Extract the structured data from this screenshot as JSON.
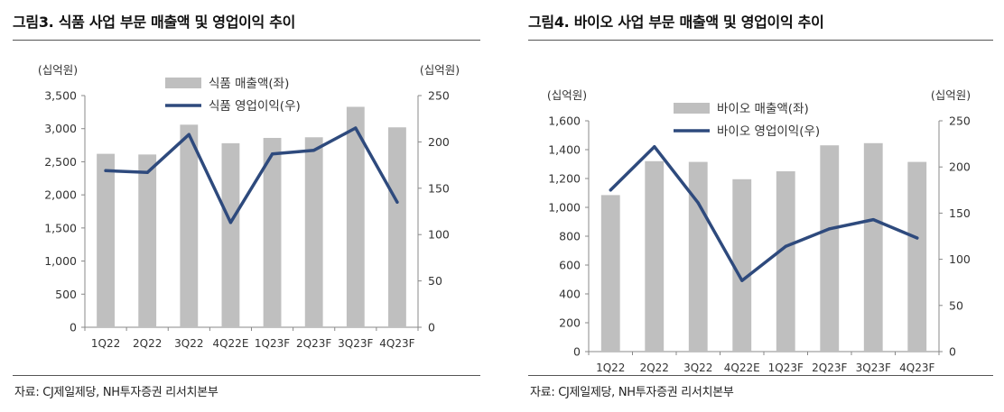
{
  "colors": {
    "bar": "#bfbfbf",
    "line": "#2e4a7d",
    "axis": "#888888",
    "rule": "#555555"
  },
  "panels": [
    {
      "title": "그림3. 식품 사업 부문 매출액 및 영업이익 추이",
      "source": "자료: CJ제일제당, NH투자증권 리서치본부"
    },
    {
      "title": "그림4. 바이오 사업 부문 매출액 및 영업이익 추이",
      "source": "자료: CJ제일제당, NH투자증권 리서치본부"
    }
  ],
  "chart_data": [
    {
      "type": "bar",
      "title": "그림3. 식품 사업 부문 매출액 및 영업이익 추이",
      "categories": [
        "1Q22",
        "2Q22",
        "3Q22",
        "4Q22E",
        "1Q23F",
        "2Q23F",
        "3Q23F",
        "4Q23F"
      ],
      "left_unit": "(십억원)",
      "right_unit": "(십억원)",
      "ylim_left": [
        0,
        3500
      ],
      "yticks_left": [
        0,
        500,
        1000,
        1500,
        2000,
        2500,
        3000,
        3500
      ],
      "ytick_labels_left": [
        "0",
        "500",
        "1,000",
        "1,500",
        "2,000",
        "2,500",
        "3,000",
        "3,500"
      ],
      "ylim_right": [
        0,
        250
      ],
      "yticks_right": [
        0,
        50,
        100,
        150,
        200,
        250
      ],
      "ytick_labels_right": [
        "0",
        "50",
        "100",
        "150",
        "200",
        "250"
      ],
      "series": [
        {
          "name": "식품 매출액(좌)",
          "kind": "bar",
          "axis": "left",
          "values": [
            2620,
            2610,
            3060,
            2780,
            2860,
            2870,
            3330,
            3020
          ]
        },
        {
          "name": "식품 영업이익(우)",
          "kind": "line",
          "axis": "right",
          "values": [
            169,
            167,
            208,
            113,
            187,
            191,
            215,
            135
          ]
        }
      ],
      "legend_position": "top-center"
    },
    {
      "type": "bar",
      "title": "그림4. 바이오 사업 부문 매출액 및 영업이익 추이",
      "categories": [
        "1Q22",
        "2Q22",
        "3Q22",
        "4Q22E",
        "1Q23F",
        "2Q23F",
        "3Q23F",
        "4Q23F"
      ],
      "left_unit": "(십억원)",
      "right_unit": "(십억원)",
      "ylim_left": [
        0,
        1600
      ],
      "yticks_left": [
        0,
        200,
        400,
        600,
        800,
        1000,
        1200,
        1400,
        1600
      ],
      "ytick_labels_left": [
        "0",
        "200",
        "400",
        "600",
        "800",
        "1,000",
        "1,200",
        "1,400",
        "1,600"
      ],
      "ylim_right": [
        0,
        250
      ],
      "yticks_right": [
        0,
        50,
        100,
        150,
        200,
        250
      ],
      "ytick_labels_right": [
        "0",
        "50",
        "100",
        "150",
        "200",
        "250"
      ],
      "series": [
        {
          "name": "바이오 매출액(좌)",
          "kind": "bar",
          "axis": "left",
          "values": [
            1085,
            1320,
            1315,
            1195,
            1250,
            1430,
            1445,
            1315
          ]
        },
        {
          "name": "바이오 영업이익(우)",
          "kind": "line",
          "axis": "right",
          "values": [
            175,
            222,
            161,
            77,
            114,
            133,
            143,
            123
          ]
        }
      ],
      "legend_position": "top-center"
    }
  ]
}
